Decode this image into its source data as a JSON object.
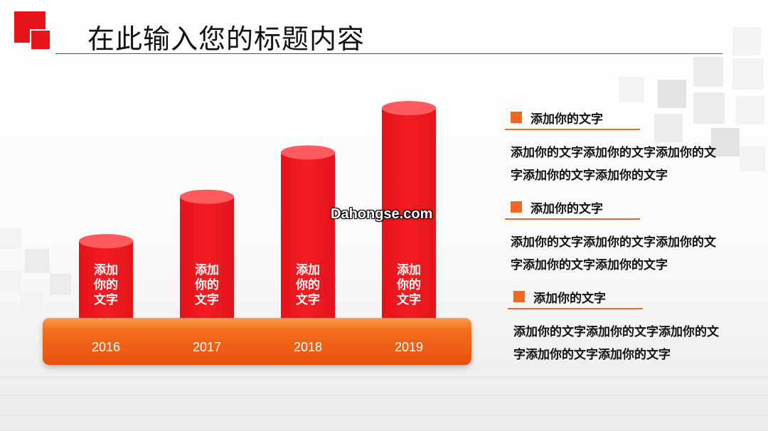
{
  "header": {
    "title": "在此输入您的标题内容"
  },
  "chart_data": {
    "type": "bar",
    "categories": [
      "2016",
      "2017",
      "2018",
      "2019"
    ],
    "values": [
      1,
      2,
      3,
      4
    ],
    "bar_labels": [
      "添加\n你的\n文字",
      "添加\n你的\n文字",
      "添加\n你的\n文字",
      "添加\n你的\n文字"
    ],
    "bar_color": "#e8141b",
    "base_color": "#f26722",
    "title": "",
    "xlabel": "",
    "ylabel": ""
  },
  "watermark": "Dahongse.com",
  "items": [
    {
      "heading": "添加你的文字",
      "body": "添加你的文字添加你的文字添加你的文字添加你的文字添加你的文字"
    },
    {
      "heading": "添加你的文字",
      "body": "添加你的文字添加你的文字添加你的文字添加你的文字添加你的文字"
    },
    {
      "heading": "添加你的文字",
      "body": "添加你的文字添加你的文字添加你的文字添加你的文字添加你的文字"
    }
  ],
  "colors": {
    "accent": "#f26722",
    "brand": "#e8141b"
  }
}
